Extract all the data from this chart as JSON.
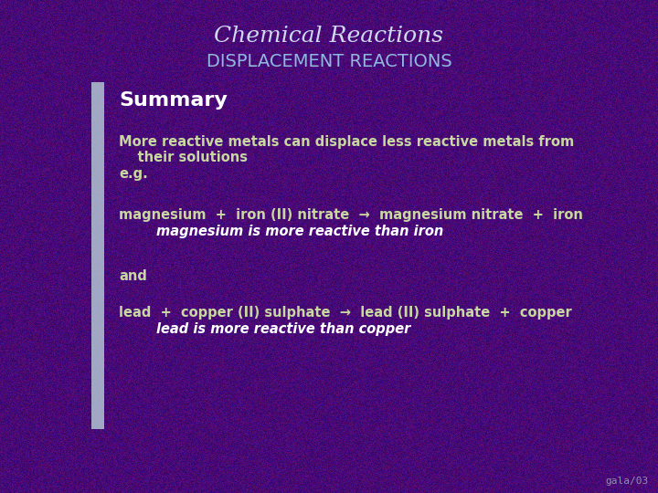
{
  "title_line1": "Chemical Reactions",
  "title_line2": "DISPLACEMENT REACTIONS",
  "title1_color": "#d0d8f0",
  "title2_color": "#90b8e0",
  "bg_color": "#4a0080",
  "bar_color": "#b8d0d8",
  "summary_text": "Summary",
  "summary_color": "#ffffff",
  "body_color": "#c8d8a0",
  "italic_color": "#ffffff",
  "footer": "gala/03",
  "footer_color": "#9090b0",
  "line1": "More reactive metals can displace less reactive metals from",
  "line2": "    their solutions",
  "line3": "e.g.",
  "line4": "magnesium  +  iron (II) nitrate  →  magnesium nitrate  +  iron",
  "line5_italic": "        magnesium is more reactive than iron",
  "line6": "and",
  "line7": "lead  +  copper (II) sulphate  →  lead (II) sulphate  +  copper",
  "line8_italic": "        lead is more reactive than copper"
}
